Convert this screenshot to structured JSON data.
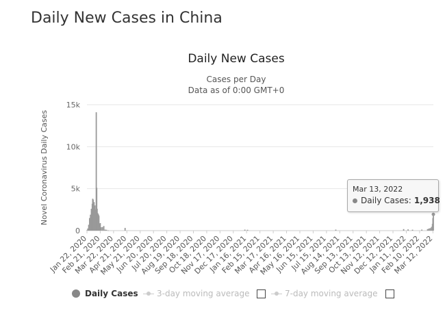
{
  "page": {
    "title": "Daily New Cases in China"
  },
  "legend": {
    "daily_cases": "Daily Cases",
    "moving_avg_3": "3-day moving average",
    "moving_avg_7": "7-day moving average"
  },
  "tooltip": {
    "date": "Mar 13, 2022",
    "label": "Daily Cases:",
    "value": "1,938"
  },
  "colors": {
    "bars": "#999999",
    "grid": "#e6e6e6",
    "legend_inactive": "#cccccc"
  },
  "chart_data": {
    "type": "bar",
    "title": "Daily New Cases",
    "subtitle": [
      "Cases per Day",
      "Data as of 0:00 GMT+0"
    ],
    "ylabel": "Novel Coronavirus Daily Cases",
    "ylim": [
      0,
      15000
    ],
    "yticks": [
      "0",
      "5k",
      "10k",
      "15k"
    ],
    "ytick_values": [
      0,
      5000,
      10000,
      15000
    ],
    "xticks": [
      "Jan 22, 2020",
      "Feb 21, 2020",
      "Mar 22, 2020",
      "Apr 21, 2020",
      "May 21, 2020",
      "Jun 20, 2020",
      "Jul 20, 2020",
      "Aug 19, 2020",
      "Sep 18, 2020",
      "Oct 18, 2020",
      "Nov 17, 2020",
      "Dec 17, 2020",
      "Jan 16, 2021",
      "Feb 15, 2021",
      "Mar 17, 2021",
      "Apr 16, 2021",
      "May 16, 2021",
      "Jun 15, 2021",
      "Jul 15, 2021",
      "Aug 14, 2021",
      "Sep 13, 2021",
      "Oct 13, 2021",
      "Nov 12, 2021",
      "Dec 12, 2021",
      "Jan 11, 2022",
      "Feb 10, 2022",
      "Mar 12, 2022"
    ],
    "x_period": "daily from Jan 22, 2020 to Mar 13, 2022",
    "grid": true,
    "series": [
      {
        "name": "Daily Cases",
        "points": [
          [
            "Jan 22, 2020",
            50
          ],
          [
            "Jan 24, 2020",
            250
          ],
          [
            "Jan 26, 2020",
            700
          ],
          [
            "Jan 28, 2020",
            1500
          ],
          [
            "Jan 30, 2020",
            1900
          ],
          [
            "Feb 01, 2020",
            2600
          ],
          [
            "Feb 03, 2020",
            3200
          ],
          [
            "Feb 04, 2020",
            3800
          ],
          [
            "Feb 05, 2020",
            3700
          ],
          [
            "Feb 06, 2020",
            3200
          ],
          [
            "Feb 07, 2020",
            3400
          ],
          [
            "Feb 08, 2020",
            2700
          ],
          [
            "Feb 09, 2020",
            3000
          ],
          [
            "Feb 10, 2020",
            2500
          ],
          [
            "Feb 11, 2020",
            2000
          ],
          [
            "Feb 12, 2020",
            14100
          ],
          [
            "Feb 13, 2020",
            5100
          ],
          [
            "Feb 14, 2020",
            2600
          ],
          [
            "Feb 15, 2020",
            2100
          ],
          [
            "Feb 16, 2020",
            2000
          ],
          [
            "Feb 17, 2020",
            1900
          ],
          [
            "Feb 18, 2020",
            1750
          ],
          [
            "Feb 19, 2020",
            800
          ],
          [
            "Feb 21, 2020",
            900
          ],
          [
            "Feb 23, 2020",
            400
          ],
          [
            "Feb 26, 2020",
            430
          ],
          [
            "Feb 29, 2020",
            550
          ],
          [
            "Mar 03, 2020",
            120
          ],
          [
            "Mar 06, 2020",
            100
          ],
          [
            "Mar 10, 2020",
            30
          ],
          [
            "Apr 17, 2020",
            325
          ],
          [
            "Jan 12, 2021",
            120
          ],
          [
            "Jan 18, 2021",
            100
          ],
          [
            "Aug 05, 2021",
            120
          ],
          [
            "Jan 05, 2022",
            180
          ],
          [
            "Jan 15, 2022",
            150
          ],
          [
            "Jan 25, 2022",
            110
          ],
          [
            "Feb 15, 2022",
            120
          ],
          [
            "Feb 28, 2022",
            180
          ],
          [
            "Mar 03, 2022",
            250
          ],
          [
            "Mar 06, 2022",
            300
          ],
          [
            "Mar 09, 2022",
            450
          ],
          [
            "Mar 11, 2022",
            800
          ],
          [
            "Mar 12, 2022",
            1500
          ],
          [
            "Mar 13, 2022",
            1938
          ]
        ]
      }
    ]
  }
}
